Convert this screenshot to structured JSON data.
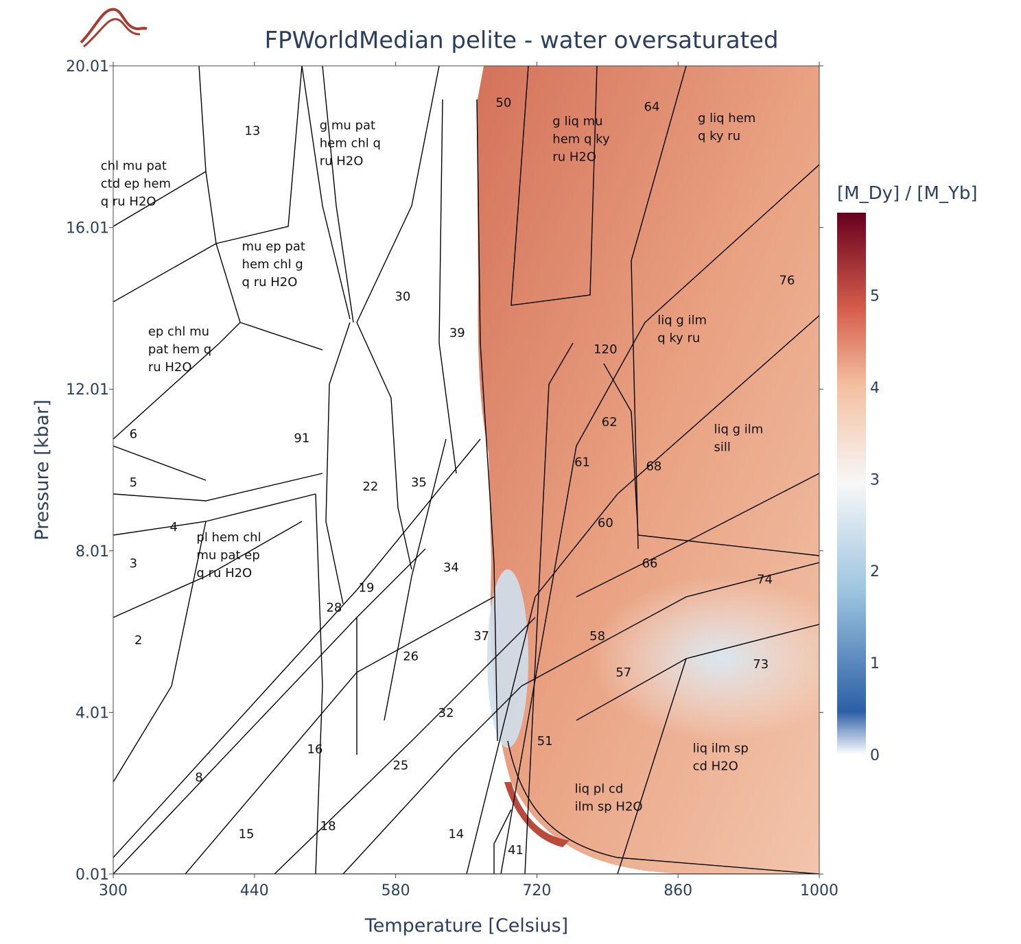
{
  "chart_data": {
    "type": "heatmap",
    "title": "FPWorldMedian pelite - water oversaturated",
    "xlabel": "Temperature [Celsius]",
    "ylabel": "Pressure [kbar]",
    "xlim": [
      300,
      1000
    ],
    "ylim": [
      0.01,
      20.01
    ],
    "x_ticks": [
      "300",
      "440",
      "580",
      "720",
      "860",
      "1000"
    ],
    "x_tick_values": [
      300,
      440,
      580,
      720,
      860,
      1000
    ],
    "y_ticks": [
      "0.01",
      "4.01",
      "8.01",
      "12.01",
      "16.01",
      "20.01"
    ],
    "y_tick_values": [
      0.01,
      4.01,
      8.01,
      12.01,
      16.01,
      20.01
    ],
    "colorbar": {
      "title": "[M_Dy] / [M_Yb]",
      "range": [
        0,
        5.9
      ],
      "ticks": [
        "0",
        "1",
        "2",
        "3",
        "4",
        "5"
      ],
      "tick_values": [
        0,
        1,
        2,
        3,
        4,
        5
      ],
      "colors": [
        "#ffffff",
        "#2c5fa6",
        "#c4dcee",
        "#f7f7f7",
        "#f3c0a0",
        "#d65f4c",
        "#67001f"
      ]
    },
    "fields": [
      {
        "label": "chl mu pat\nctd ep hem\nq ru H2O",
        "t": 325,
        "p": 17.0
      },
      {
        "label": "mu ep pat\nhem chl g\nq ru H2O",
        "t": 465,
        "p": 15.0
      },
      {
        "label": "ep chl mu\npat hem q\nru H2O",
        "t": 372,
        "p": 12.9
      },
      {
        "label": "g mu pat\nhem chl q\nru H2O",
        "t": 542,
        "p": 18.0
      },
      {
        "label": "pl hem chl\nmu pat ep\nq ru H2O",
        "t": 420,
        "p": 7.8
      },
      {
        "label": "g liq mu\nhem q ky\nru H2O",
        "t": 773,
        "p": 18.1
      },
      {
        "label": "g liq hem\nq ky ru",
        "t": 917,
        "p": 18.4
      },
      {
        "label": "liq g ilm\nq ky ru",
        "t": 877,
        "p": 13.4
      },
      {
        "label": "liq g ilm\nsill",
        "t": 933,
        "p": 10.7
      },
      {
        "label": "liq ilm sp\ncd H2O",
        "t": 912,
        "p": 2.8
      },
      {
        "label": "liq pl cd\nilm sp H2O",
        "t": 795,
        "p": 1.8
      }
    ],
    "field_numbers": [
      {
        "n": "13",
        "t": 438,
        "p": 18.3
      },
      {
        "n": "30",
        "t": 587,
        "p": 14.2
      },
      {
        "n": "39",
        "t": 641,
        "p": 13.3
      },
      {
        "n": "50",
        "t": 687,
        "p": 19.0
      },
      {
        "n": "64",
        "t": 834,
        "p": 18.9
      },
      {
        "n": "76",
        "t": 968,
        "p": 14.6
      },
      {
        "n": "120",
        "t": 788,
        "p": 12.9
      },
      {
        "n": "62",
        "t": 792,
        "p": 11.1
      },
      {
        "n": "68",
        "t": 836,
        "p": 10.0
      },
      {
        "n": "61",
        "t": 765,
        "p": 10.1
      },
      {
        "n": "60",
        "t": 788,
        "p": 8.6
      },
      {
        "n": "66",
        "t": 832,
        "p": 7.6
      },
      {
        "n": "74",
        "t": 946,
        "p": 7.2
      },
      {
        "n": "73",
        "t": 942,
        "p": 5.1
      },
      {
        "n": "58",
        "t": 780,
        "p": 5.8
      },
      {
        "n": "57",
        "t": 806,
        "p": 4.9
      },
      {
        "n": "51",
        "t": 728,
        "p": 3.2
      },
      {
        "n": "41",
        "t": 699,
        "p": 0.5
      },
      {
        "n": "14",
        "t": 640,
        "p": 0.9
      },
      {
        "n": "25",
        "t": 585,
        "p": 2.6
      },
      {
        "n": "18",
        "t": 513,
        "p": 1.1
      },
      {
        "n": "15",
        "t": 432,
        "p": 0.9
      },
      {
        "n": "16",
        "t": 500,
        "p": 3.0
      },
      {
        "n": "8",
        "t": 385,
        "p": 2.3
      },
      {
        "n": "2",
        "t": 325,
        "p": 5.7
      },
      {
        "n": "3",
        "t": 320,
        "p": 7.6
      },
      {
        "n": "4",
        "t": 360,
        "p": 8.5
      },
      {
        "n": "5",
        "t": 320,
        "p": 9.6
      },
      {
        "n": "6",
        "t": 320,
        "p": 10.8
      },
      {
        "n": "91",
        "t": 487,
        "p": 10.7
      },
      {
        "n": "22",
        "t": 555,
        "p": 9.5
      },
      {
        "n": "35",
        "t": 603,
        "p": 9.6
      },
      {
        "n": "19",
        "t": 551,
        "p": 7.0
      },
      {
        "n": "34",
        "t": 635,
        "p": 7.5
      },
      {
        "n": "26",
        "t": 595,
        "p": 5.3
      },
      {
        "n": "37",
        "t": 665,
        "p": 5.8
      },
      {
        "n": "32",
        "t": 630,
        "p": 3.9
      },
      {
        "n": "28",
        "t": 519,
        "p": 6.5
      }
    ]
  }
}
